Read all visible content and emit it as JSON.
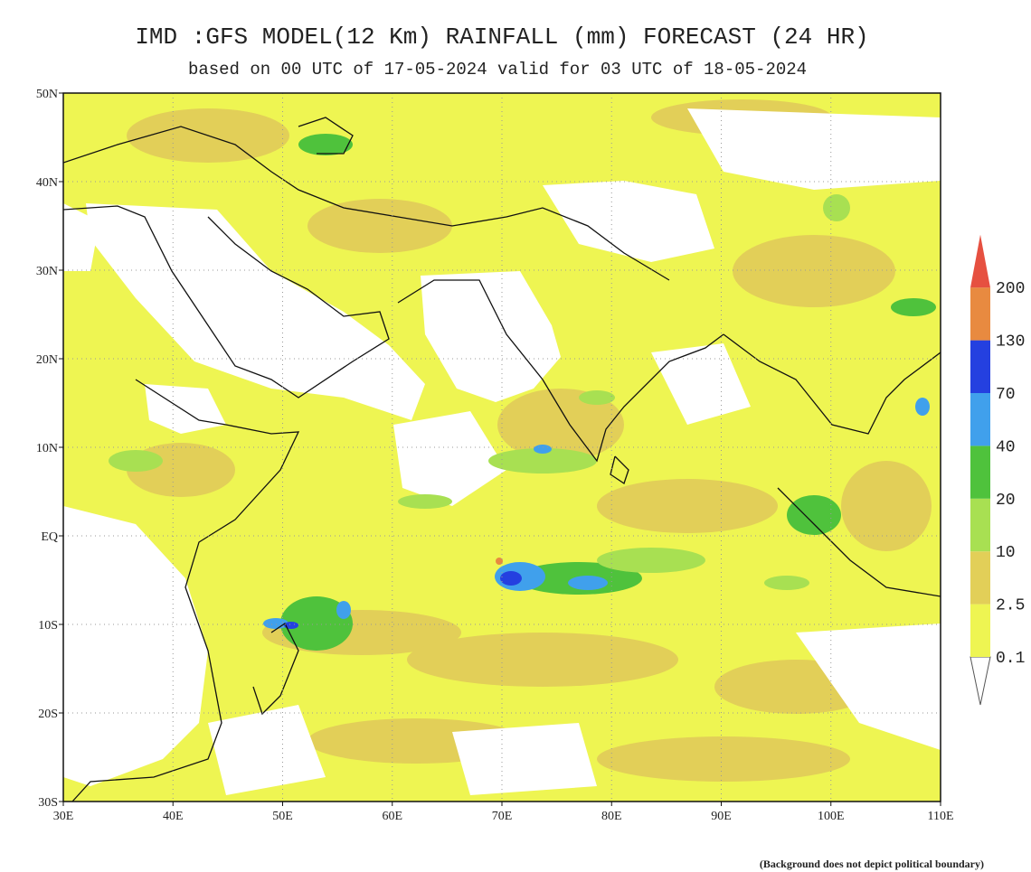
{
  "header": {
    "title": "IMD :GFS MODEL(12 Km) RAINFALL (mm) FORECAST (24 HR)",
    "subtitle": "based on 00 UTC of 17-05-2024 valid for 03 UTC of 18-05-2024"
  },
  "map": {
    "lon_ticks": [
      "30E",
      "40E",
      "50E",
      "60E",
      "70E",
      "80E",
      "90E",
      "100E",
      "110E"
    ],
    "lat_ticks": [
      "50N",
      "40N",
      "30N",
      "20N",
      "10N",
      "EQ",
      "10S",
      "20S",
      "30S"
    ]
  },
  "legend": {
    "levels": [
      "0.1",
      "2.5",
      "10",
      "20",
      "40",
      "70",
      "130",
      "200"
    ],
    "colors": [
      "#eef552",
      "#e2cf58",
      "#a8e052",
      "#4fc23c",
      "#40a0ec",
      "#2440e0",
      "#e88a40",
      "#e65040"
    ]
  },
  "footer": {
    "note": "(Background does not depict political boundary)"
  }
}
